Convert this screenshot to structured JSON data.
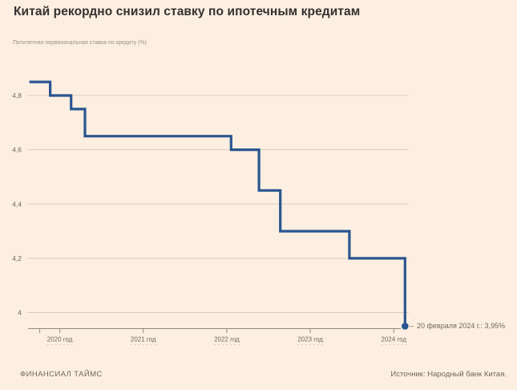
{
  "title": "Китай рекордно снизил ставку по ипотечным кредитам",
  "subtitle": "Пятилетняя первоначальная ставка по кредиту (%)",
  "annotation": {
    "dash": "–",
    "label": "20 февраля 2024 г.: 3,95%"
  },
  "footer": {
    "brand": "ФИНАНСИАЛ ТАЙМС",
    "source": "Источник: Народный банк Китая."
  },
  "colors": {
    "background": "#fcefe1",
    "line": "#2a5590",
    "grid": "#dccdbc",
    "axis": "#95897b",
    "title_text": "#33302e",
    "muted_text": "#9b9184",
    "label_text": "#6f685e"
  },
  "chart_data": {
    "type": "line",
    "step": true,
    "title": "Китай рекордно снизил ставку по ипотечным кредитам",
    "ylabel": "Пятилетняя первоначальная ставка по кредиту (%)",
    "points": [
      {
        "date": "2019-08-20",
        "value": 4.85
      },
      {
        "date": "2019-11-20",
        "value": 4.8
      },
      {
        "date": "2020-02-20",
        "value": 4.75
      },
      {
        "date": "2020-04-20",
        "value": 4.65
      },
      {
        "date": "2022-01-20",
        "value": 4.6
      },
      {
        "date": "2022-05-20",
        "value": 4.45
      },
      {
        "date": "2022-08-22",
        "value": 4.3
      },
      {
        "date": "2023-06-20",
        "value": 4.2
      },
      {
        "date": "2024-02-20",
        "value": 3.95
      }
    ],
    "end_label": "20 февраля 2024 г.: 3,95%",
    "yticks": [
      {
        "v": 4.8,
        "label": "4,8"
      },
      {
        "v": 4.6,
        "label": "4,6"
      },
      {
        "v": 4.4,
        "label": "4,4"
      },
      {
        "v": 4.2,
        "label": "4,2"
      },
      {
        "v": 4.0,
        "label": "4"
      }
    ],
    "xticks": [
      {
        "v": 2020,
        "label": "2020 год"
      },
      {
        "v": 2021,
        "label": "2021 год"
      },
      {
        "v": 2022,
        "label": "2022 год"
      },
      {
        "v": 2023,
        "label": "2023 год"
      },
      {
        "v": 2024,
        "label": "2024 год"
      }
    ],
    "minor_xticks": [
      2019.76
    ],
    "xlim": [
      2019.62,
      2024.18
    ],
    "ylim": [
      3.93,
      4.87
    ],
    "grid": true,
    "legend": false
  }
}
